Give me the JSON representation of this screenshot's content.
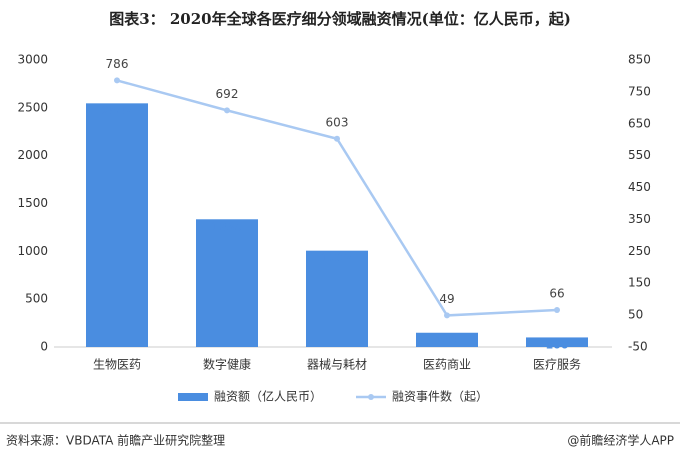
{
  "chart_data": {
    "type": "combo",
    "title": "图表3： 2020年全球各医疗细分领域融资情况(单位：亿人民币，起)",
    "categories": [
      "生物医药",
      "数字健康",
      "器械与耗材",
      "医药商业",
      "医疗服务"
    ],
    "series": [
      {
        "name": "融资额（亿人民币）",
        "type": "bar",
        "color": "#4a8de0",
        "values": [
          2547,
          1335,
          1007,
          149,
          100
        ]
      },
      {
        "name": "融资事件数（起）",
        "type": "line",
        "axis": "y2",
        "color": "#a9c9f2",
        "values": [
          786,
          692,
          603,
          49,
          66
        ]
      }
    ],
    "ylim": [
      0,
      3000
    ],
    "yticks": [
      0,
      500,
      1000,
      1500,
      2000,
      2500,
      3000
    ],
    "y2lim": [
      -50,
      850
    ],
    "y2ticks": [
      -50,
      50,
      150,
      250,
      350,
      450,
      550,
      650,
      750,
      850
    ],
    "source": "资料来源：VBDATA 前瞻产业研究院整理",
    "credit": "@前瞻经济学人APP"
  }
}
